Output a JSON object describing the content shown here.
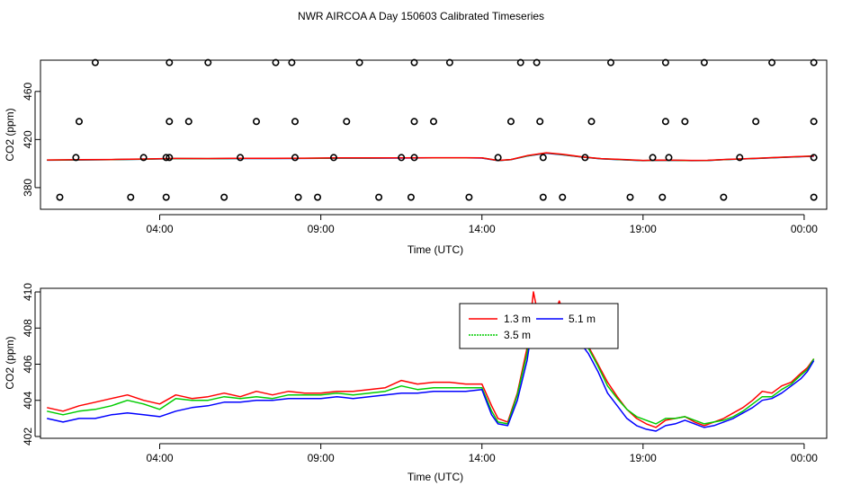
{
  "title": "NWR AIRCOA A  Day 150603  Calibrated Timeseries",
  "colors": {
    "red": "#ff0000",
    "green": "#00cc00",
    "blue": "#0000ff",
    "axis": "#000000"
  },
  "chart_data": [
    {
      "type": "line",
      "xlabel": "Time (UTC)",
      "ylabel": "CO2 (ppm)",
      "xlim": [
        -0.2,
        24.2
      ],
      "ylim": [
        362,
        486
      ],
      "x_ticks": [
        3.5,
        8.5,
        13.5,
        18.5,
        23.5
      ],
      "x_tick_labels": [
        "04:00",
        "09:00",
        "14:00",
        "19:00",
        "00:00"
      ],
      "y_ticks": [
        380,
        420,
        460
      ],
      "y_tick_labels": [
        "380",
        "420",
        "460"
      ],
      "series": [
        {
          "color": "#0000ff",
          "x": [
            0,
            1,
            2,
            3,
            4,
            5,
            6,
            7,
            8,
            9,
            10,
            11,
            12,
            13,
            13.5,
            14,
            14.4,
            14.9,
            15.5,
            16,
            16.6,
            17.2,
            18,
            18.5,
            19,
            19.5,
            20,
            20.5,
            21,
            22,
            23,
            23.8
          ],
          "y": [
            402.8,
            403,
            403.2,
            403.6,
            404.1,
            404,
            404.2,
            404.2,
            404.3,
            404.5,
            404.5,
            404.6,
            404.7,
            404.7,
            404.6,
            402.4,
            403.2,
            406.2,
            408.6,
            407.3,
            405.4,
            403.9,
            403,
            402.4,
            402.7,
            402.6,
            402.4,
            402.5,
            403.2,
            404.2,
            405.3,
            406.1
          ]
        },
        {
          "color": "#00cc00",
          "x": [
            0,
            1,
            2,
            3,
            4,
            5,
            6,
            7,
            8,
            9,
            10,
            11,
            12,
            13,
            13.5,
            14,
            14.4,
            14.9,
            15.5,
            16,
            16.6,
            17.2,
            18,
            18.5,
            19,
            19.5,
            20,
            20.5,
            21,
            22,
            23,
            23.8
          ],
          "y": [
            402.9,
            403.1,
            403.3,
            403.7,
            404.2,
            404.1,
            404.3,
            404.3,
            404.4,
            404.6,
            404.6,
            404.7,
            404.8,
            404.8,
            404.7,
            402.5,
            403.3,
            406.4,
            408.8,
            407.5,
            405.5,
            404,
            403.1,
            402.5,
            402.8,
            402.7,
            402.5,
            402.6,
            403.3,
            404.3,
            405.4,
            406.2
          ]
        },
        {
          "color": "#ff0000",
          "x": [
            0,
            1,
            2,
            3,
            4,
            5,
            6,
            7,
            8,
            9,
            10,
            11,
            12,
            13,
            13.5,
            14,
            14.4,
            14.9,
            15.5,
            16,
            16.6,
            17.2,
            18,
            18.5,
            19,
            19.5,
            20,
            20.5,
            21,
            22,
            23,
            23.8
          ],
          "y": [
            403,
            403.2,
            403.4,
            403.8,
            404.3,
            404.2,
            404.4,
            404.4,
            404.5,
            404.7,
            404.7,
            404.8,
            404.9,
            404.9,
            404.8,
            402.6,
            403.4,
            406.6,
            409,
            407.7,
            405.6,
            404.1,
            403.2,
            402.6,
            402.9,
            402.8,
            402.6,
            402.7,
            403.4,
            404.4,
            405.5,
            406.3
          ]
        }
      ],
      "points": [
        {
          "x": 1.5,
          "y": 484
        },
        {
          "x": 3.8,
          "y": 484
        },
        {
          "x": 5,
          "y": 484
        },
        {
          "x": 7.1,
          "y": 484
        },
        {
          "x": 7.6,
          "y": 484
        },
        {
          "x": 9.7,
          "y": 484
        },
        {
          "x": 11.4,
          "y": 484
        },
        {
          "x": 12.5,
          "y": 484
        },
        {
          "x": 14.7,
          "y": 484
        },
        {
          "x": 15.2,
          "y": 484
        },
        {
          "x": 17.5,
          "y": 484
        },
        {
          "x": 19.2,
          "y": 484
        },
        {
          "x": 20.4,
          "y": 484
        },
        {
          "x": 22.5,
          "y": 484
        },
        {
          "x": 23.8,
          "y": 484
        },
        {
          "x": 1,
          "y": 435
        },
        {
          "x": 3.8,
          "y": 435
        },
        {
          "x": 4.4,
          "y": 435
        },
        {
          "x": 6.5,
          "y": 435
        },
        {
          "x": 7.7,
          "y": 435
        },
        {
          "x": 9.3,
          "y": 435
        },
        {
          "x": 11.4,
          "y": 435
        },
        {
          "x": 12,
          "y": 435
        },
        {
          "x": 14.4,
          "y": 435
        },
        {
          "x": 15.3,
          "y": 435
        },
        {
          "x": 16.9,
          "y": 435
        },
        {
          "x": 19.2,
          "y": 435
        },
        {
          "x": 19.8,
          "y": 435
        },
        {
          "x": 22,
          "y": 435
        },
        {
          "x": 23.8,
          "y": 435
        },
        {
          "x": 0.9,
          "y": 405
        },
        {
          "x": 3,
          "y": 405
        },
        {
          "x": 3.7,
          "y": 405
        },
        {
          "x": 3.8,
          "y": 405
        },
        {
          "x": 6,
          "y": 405
        },
        {
          "x": 7.7,
          "y": 405
        },
        {
          "x": 8.9,
          "y": 405
        },
        {
          "x": 11,
          "y": 405
        },
        {
          "x": 11.4,
          "y": 405
        },
        {
          "x": 14,
          "y": 405
        },
        {
          "x": 15.4,
          "y": 405
        },
        {
          "x": 16.7,
          "y": 405
        },
        {
          "x": 18.8,
          "y": 405
        },
        {
          "x": 19.3,
          "y": 405
        },
        {
          "x": 21.5,
          "y": 405
        },
        {
          "x": 23.8,
          "y": 405
        },
        {
          "x": 0.4,
          "y": 372
        },
        {
          "x": 2.6,
          "y": 372
        },
        {
          "x": 3.7,
          "y": 372
        },
        {
          "x": 5.5,
          "y": 372
        },
        {
          "x": 7.8,
          "y": 372
        },
        {
          "x": 8.4,
          "y": 372
        },
        {
          "x": 10.3,
          "y": 372
        },
        {
          "x": 11.3,
          "y": 372
        },
        {
          "x": 13.1,
          "y": 372
        },
        {
          "x": 15.4,
          "y": 372
        },
        {
          "x": 16,
          "y": 372
        },
        {
          "x": 18.1,
          "y": 372
        },
        {
          "x": 19.1,
          "y": 372
        },
        {
          "x": 21,
          "y": 372
        },
        {
          "x": 23.8,
          "y": 372
        }
      ]
    },
    {
      "type": "line",
      "xlabel": "Time (UTC)",
      "ylabel": "CO2 (ppm)",
      "xlim": [
        -0.2,
        24.2
      ],
      "ylim": [
        401.9,
        410.2
      ],
      "x_ticks": [
        3.5,
        8.5,
        13.5,
        18.5,
        23.5
      ],
      "x_tick_labels": [
        "04:00",
        "09:00",
        "14:00",
        "19:00",
        "00:00"
      ],
      "y_ticks": [
        402,
        404,
        406,
        408,
        410
      ],
      "y_tick_labels": [
        "402",
        "404",
        "406",
        "408",
        "410"
      ],
      "legend_position": "top-center",
      "series": [
        {
          "name": "1.3 m",
          "color": "#ff0000",
          "x": [
            0,
            0.5,
            1,
            1.5,
            2,
            2.5,
            3,
            3.5,
            4,
            4.5,
            5,
            5.5,
            6,
            6.5,
            7,
            7.5,
            8,
            8.5,
            9,
            9.5,
            10,
            10.5,
            11,
            11.5,
            12,
            12.5,
            13,
            13.5,
            13.8,
            14,
            14.3,
            14.6,
            14.9,
            15.1,
            15.3,
            15.5,
            15.7,
            15.9,
            16.2,
            16.5,
            16.8,
            17.1,
            17.4,
            17.7,
            18,
            18.3,
            18.6,
            18.9,
            19.2,
            19.5,
            19.8,
            20.1,
            20.4,
            20.7,
            21,
            21.3,
            21.6,
            21.9,
            22.2,
            22.5,
            22.8,
            23.1,
            23.4,
            23.6,
            23.8
          ],
          "y": [
            403.6,
            403.4,
            403.7,
            403.9,
            404.1,
            404.3,
            404.0,
            403.8,
            404.3,
            404.1,
            404.2,
            404.4,
            404.2,
            404.5,
            404.3,
            404.5,
            404.4,
            404.4,
            404.5,
            404.5,
            404.6,
            404.7,
            405.1,
            404.9,
            405.0,
            405.0,
            404.9,
            404.9,
            403.7,
            403.0,
            402.8,
            404.4,
            406.9,
            410.0,
            408.2,
            407.0,
            408.6,
            409.5,
            408.2,
            407.7,
            407.0,
            406.0,
            405.0,
            404.2,
            403.5,
            403.0,
            402.7,
            402.5,
            402.9,
            403.0,
            403.1,
            402.8,
            402.6,
            402.8,
            403.0,
            403.3,
            403.6,
            404.0,
            404.5,
            404.4,
            404.8,
            405.0,
            405.5,
            405.8,
            406.3
          ]
        },
        {
          "name": "3.5 m",
          "color": "#00cc00",
          "x": [
            0,
            0.5,
            1,
            1.5,
            2,
            2.5,
            3,
            3.5,
            4,
            4.5,
            5,
            5.5,
            6,
            6.5,
            7,
            7.5,
            8,
            8.5,
            9,
            9.5,
            10,
            10.5,
            11,
            11.5,
            12,
            12.5,
            13,
            13.5,
            13.8,
            14,
            14.3,
            14.6,
            14.9,
            15.1,
            15.3,
            15.5,
            15.7,
            15.9,
            16.2,
            16.5,
            16.8,
            17.1,
            17.4,
            17.7,
            18,
            18.3,
            18.6,
            18.9,
            19.2,
            19.5,
            19.8,
            20.1,
            20.4,
            20.7,
            21,
            21.3,
            21.6,
            21.9,
            22.2,
            22.5,
            22.8,
            23.1,
            23.4,
            23.6,
            23.8
          ],
          "y": [
            403.4,
            403.2,
            403.4,
            403.5,
            403.7,
            404.0,
            403.8,
            403.5,
            404.1,
            404.0,
            404.0,
            404.2,
            404.1,
            404.2,
            404.1,
            404.3,
            404.3,
            404.3,
            404.4,
            404.3,
            404.4,
            404.5,
            404.8,
            404.6,
            404.7,
            404.7,
            404.7,
            404.7,
            403.4,
            402.8,
            402.7,
            404.3,
            406.6,
            409.2,
            408.0,
            407.3,
            408.6,
            409.3,
            408.3,
            407.6,
            406.9,
            405.9,
            404.8,
            404.1,
            403.5,
            403.1,
            402.9,
            402.7,
            403.0,
            403.0,
            403.1,
            402.9,
            402.7,
            402.8,
            402.9,
            403.1,
            403.4,
            403.8,
            404.2,
            404.2,
            404.6,
            404.9,
            405.4,
            405.7,
            406.3
          ]
        },
        {
          "name": "5.1 m",
          "color": "#0000ff",
          "x": [
            0,
            0.5,
            1,
            1.5,
            2,
            2.5,
            3,
            3.5,
            4,
            4.5,
            5,
            5.5,
            6,
            6.5,
            7,
            7.5,
            8,
            8.5,
            9,
            9.5,
            10,
            10.5,
            11,
            11.5,
            12,
            12.5,
            13,
            13.5,
            13.8,
            14,
            14.3,
            14.6,
            14.9,
            15.1,
            15.3,
            15.5,
            15.7,
            15.9,
            16.2,
            16.5,
            16.8,
            17.1,
            17.4,
            17.7,
            18,
            18.3,
            18.6,
            18.9,
            19.2,
            19.5,
            19.8,
            20.1,
            20.4,
            20.7,
            21,
            21.3,
            21.6,
            21.9,
            22.2,
            22.5,
            22.8,
            23.1,
            23.4,
            23.6,
            23.8
          ],
          "y": [
            403.0,
            402.8,
            403.0,
            403.0,
            403.2,
            403.3,
            403.2,
            403.1,
            403.4,
            403.6,
            403.7,
            403.9,
            403.9,
            404.0,
            404.0,
            404.1,
            404.1,
            404.1,
            404.2,
            404.1,
            404.2,
            404.3,
            404.4,
            404.4,
            404.5,
            404.5,
            404.5,
            404.6,
            403.2,
            402.7,
            402.6,
            404.0,
            406.2,
            408.5,
            407.8,
            407.6,
            408.4,
            409.0,
            408.1,
            407.3,
            406.6,
            405.6,
            404.4,
            403.7,
            403.0,
            402.6,
            402.4,
            402.3,
            402.6,
            402.7,
            402.9,
            402.7,
            402.5,
            402.6,
            402.8,
            403.0,
            403.3,
            403.6,
            404.0,
            404.1,
            404.4,
            404.8,
            405.2,
            405.6,
            406.2
          ]
        }
      ]
    }
  ]
}
